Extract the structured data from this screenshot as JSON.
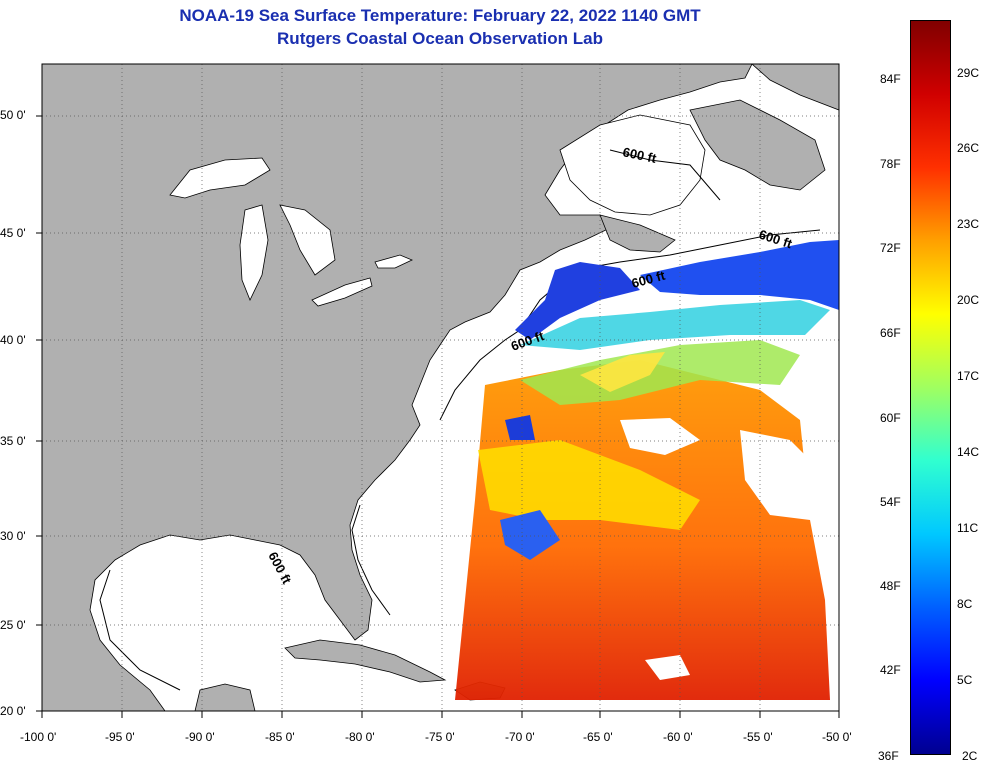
{
  "header": {
    "title": "NOAA-19 Sea Surface Temperature:  February 22, 2022 1140 GMT",
    "subtitle": "Rutgers Coastal Ocean Observation Lab"
  },
  "map": {
    "lon_labels": [
      "-100 0'",
      "-95 0'",
      "-90 0'",
      "-85 0'",
      "-80 0'",
      "-75 0'",
      "-70 0'",
      "-65 0'",
      "-60 0'",
      "-55 0'",
      "-50 0'"
    ],
    "lat_labels": [
      "50 0'",
      "45 0'",
      "40 0'",
      "35 0'",
      "30 0'",
      "25 0'",
      "20 0'"
    ],
    "contour_labels": [
      "600 ft",
      "600 ft",
      "600 ft",
      "600 ft",
      "600 ft"
    ],
    "colors": {
      "land": "#b0b0b0",
      "water": "#ffffff",
      "grid": "#555555",
      "coast": "#000000"
    }
  },
  "colorbar": {
    "fahrenheit": [
      "84F",
      "78F",
      "72F",
      "66F",
      "60F",
      "54F",
      "48F",
      "42F",
      "36F"
    ],
    "celsius": [
      "29C",
      "26C",
      "23C",
      "20C",
      "17C",
      "14C",
      "11C",
      "8C",
      "5C",
      "2C"
    ],
    "gradient": [
      "#000090",
      "#0000ff",
      "#0060ff",
      "#00c8ff",
      "#30ffd0",
      "#a0ff60",
      "#ffff00",
      "#ffa000",
      "#ff3000",
      "#d00000",
      "#800000"
    ]
  }
}
